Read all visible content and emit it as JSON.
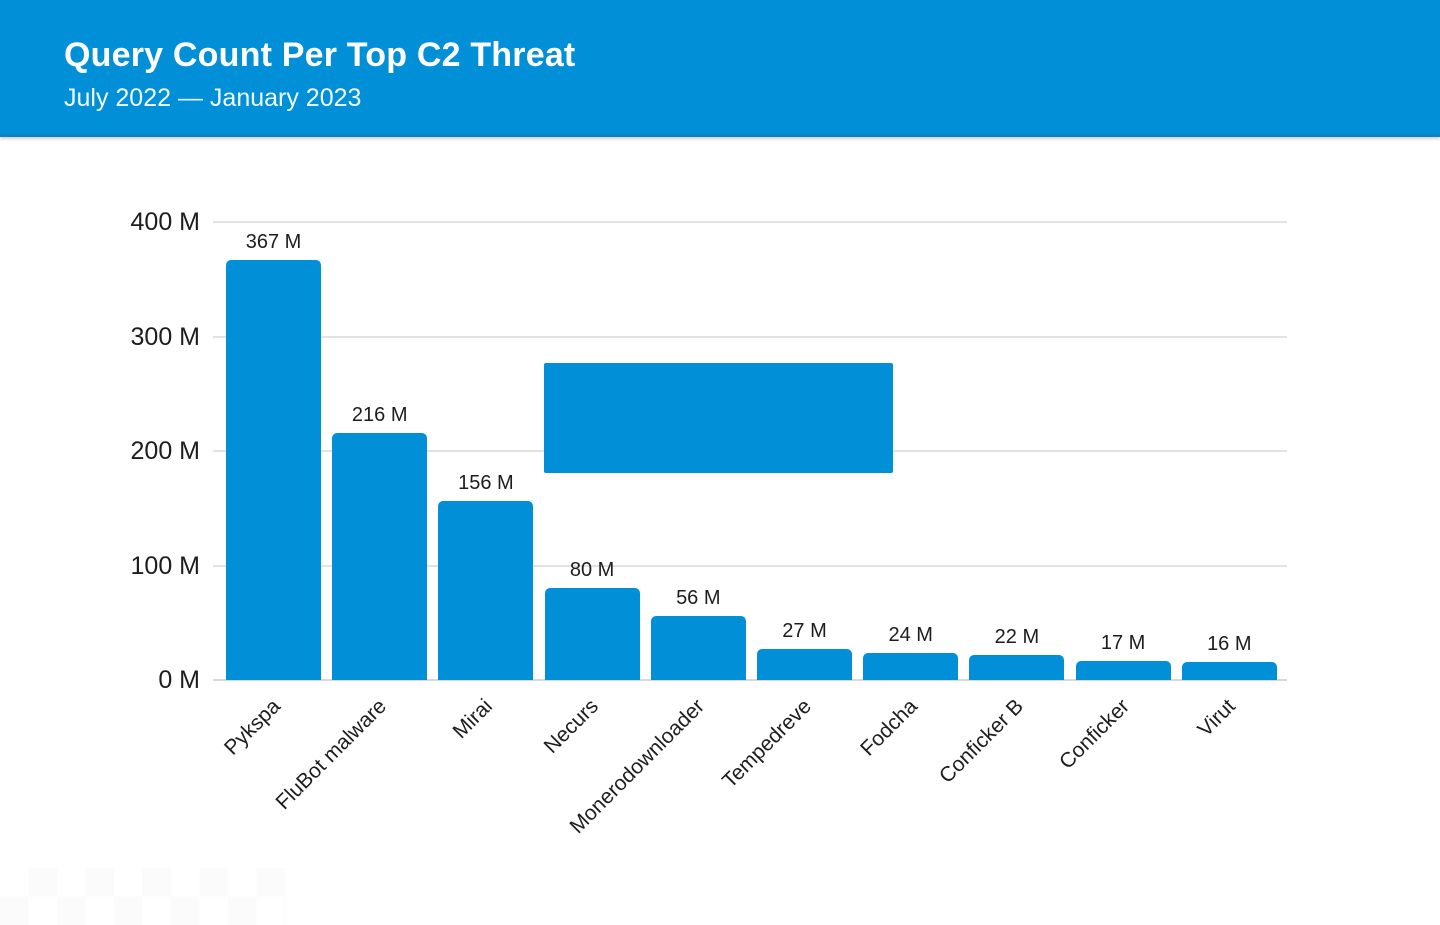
{
  "header": {
    "title": "Query Count Per Top C2 Threat",
    "subtitle": "July 2022 — January 2023"
  },
  "colors": {
    "accent_blue": "#0190d7",
    "gridline": "#e2e2e2",
    "baseline": "#d7d7d7",
    "text": "#1d1d1d",
    "header_text": "#ffffff"
  },
  "chart_data": {
    "type": "bar",
    "title": "Query Count Per Top C2 Threat",
    "subtitle": "July 2022 — January 2023",
    "categories": [
      "Pykspa",
      "FluBot malware",
      "Mirai",
      "Necurs",
      "Monerodownloader",
      "Tempedreve",
      "Fodcha",
      "Conficker B",
      "Conficker",
      "Virut"
    ],
    "values": [
      367,
      216,
      156,
      80,
      56,
      27,
      24,
      22,
      17,
      16
    ],
    "data_labels": [
      "367 M",
      "216 M",
      "156 M",
      "80 M",
      "56 M",
      "27 M",
      "24 M",
      "22 M",
      "17 M",
      "16 M"
    ],
    "value_unit": "M queries (millions)",
    "y_ticks": [
      {
        "value": 400,
        "label": "400 M"
      },
      {
        "value": 300,
        "label": "300 M"
      },
      {
        "value": 200,
        "label": "200 M"
      },
      {
        "value": 100,
        "label": "100 M"
      },
      {
        "value": 0,
        "label": "0 M"
      }
    ],
    "ylim": [
      0,
      400
    ],
    "xlabel": "",
    "ylabel": "",
    "grid": true,
    "legend": "none",
    "bar_color": "#0190d7",
    "x_label_rotation_deg": -45,
    "overlay_box": {
      "shape": "solid rectangle, no text",
      "color": "#0190d7",
      "covers_value_range": [
        182,
        278
      ],
      "covers_category_span": [
        "Necurs",
        "Fodcha"
      ]
    }
  }
}
